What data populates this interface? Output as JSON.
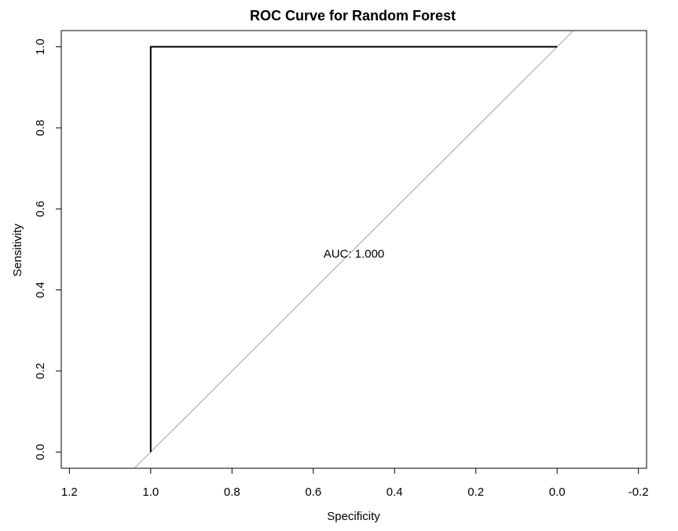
{
  "chart_data": {
    "type": "line",
    "title": "ROC Curve for Random Forest",
    "xlabel": "Specificity",
    "ylabel": "Sensitivity",
    "x_reversed": true,
    "xlim": [
      1.22,
      -0.22
    ],
    "ylim": [
      -0.04,
      1.04
    ],
    "x_ticks": [
      1.2,
      1.0,
      0.8,
      0.6,
      0.4,
      0.2,
      0.0,
      -0.2
    ],
    "x_tick_labels": [
      "1.2",
      "1.0",
      "0.8",
      "0.6",
      "0.4",
      "0.2",
      "0.0",
      "-0.2"
    ],
    "y_ticks": [
      0.0,
      0.2,
      0.4,
      0.6,
      0.8,
      1.0
    ],
    "y_tick_labels": [
      "0.0",
      "0.2",
      "0.4",
      "0.6",
      "0.8",
      "1.0"
    ],
    "grid": false,
    "series": [
      {
        "x": [
          1.0,
          1.0,
          0.0
        ],
        "y": [
          0.0,
          1.0,
          1.0
        ],
        "color": "#000000"
      }
    ],
    "reference_line": {
      "description": "identity diagonal (sensitivity = 1 - specificity)",
      "color": "#a0a0a0"
    },
    "annotations": [
      {
        "text": "AUC: 1.000",
        "x": 0.5,
        "y": 0.48
      }
    ]
  }
}
